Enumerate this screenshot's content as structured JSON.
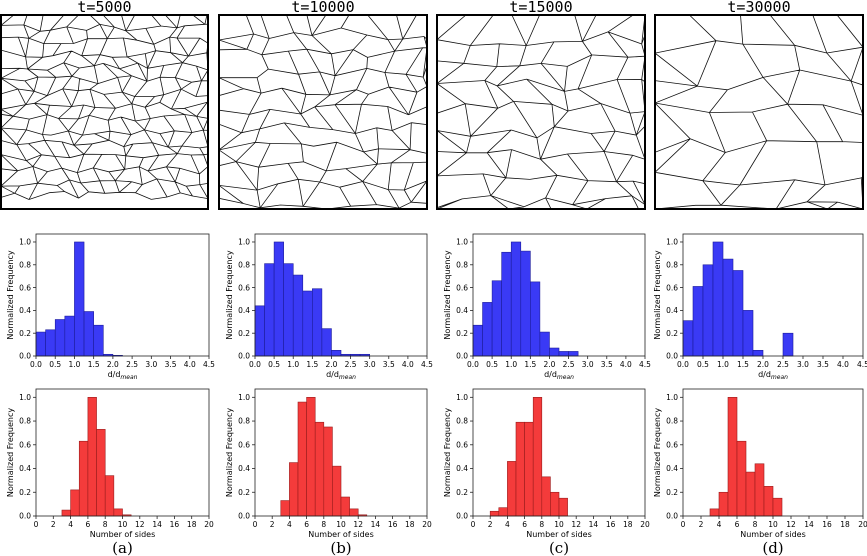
{
  "chart_data": {
    "columns": [
      {
        "time_label": "t=5000",
        "panel_label": "(a)",
        "microstructure": {
          "alt": "grain microstructure at t=5000"
        },
        "size_histogram": {
          "type": "bar",
          "series_color": "#3a3af5",
          "xlabel": "d/d",
          "xlabel_sub": "mean",
          "ylabel": "Normalized Frequency",
          "xlim": [
            0,
            4.5
          ],
          "ylim": [
            0,
            1.07
          ],
          "xticks": [
            "0.0",
            "0.5",
            "1.0",
            "1.5",
            "2.0",
            "2.5",
            "3.0",
            "3.5",
            "4.0",
            "4.5"
          ],
          "yticks": [
            "0.0",
            "0.2",
            "0.4",
            "0.6",
            "0.8",
            "1.0"
          ],
          "bin_width": 0.25,
          "bins": [
            {
              "x0": 0.0,
              "v": 0.21
            },
            {
              "x0": 0.25,
              "v": 0.23
            },
            {
              "x0": 0.5,
              "v": 0.32
            },
            {
              "x0": 0.75,
              "v": 0.35
            },
            {
              "x0": 1.0,
              "v": 1.0
            },
            {
              "x0": 1.25,
              "v": 0.39
            },
            {
              "x0": 1.5,
              "v": 0.27
            },
            {
              "x0": 1.75,
              "v": 0.015
            },
            {
              "x0": 2.0,
              "v": 0.006
            }
          ]
        },
        "sides_histogram": {
          "type": "bar",
          "series_color": "#f43b3b",
          "xlabel": "Number of sides",
          "ylabel": "Normalized Frequency",
          "xlim": [
            0,
            20
          ],
          "ylim": [
            0,
            1.07
          ],
          "xticks": [
            "0",
            "2",
            "4",
            "6",
            "8",
            "10",
            "12",
            "14",
            "16",
            "18",
            "20"
          ],
          "yticks": [
            "0.0",
            "0.2",
            "0.4",
            "0.6",
            "0.8",
            "1.0"
          ],
          "bin_width": 1,
          "bins": [
            {
              "x0": 3,
              "v": 0.05
            },
            {
              "x0": 4,
              "v": 0.22
            },
            {
              "x0": 5,
              "v": 0.63
            },
            {
              "x0": 6,
              "v": 1.0
            },
            {
              "x0": 7,
              "v": 0.73
            },
            {
              "x0": 8,
              "v": 0.34
            },
            {
              "x0": 9,
              "v": 0.06
            },
            {
              "x0": 10,
              "v": 0.01
            }
          ]
        }
      },
      {
        "time_label": "t=10000",
        "panel_label": "(b)",
        "microstructure": {
          "alt": "grain microstructure at t=10000"
        },
        "size_histogram": {
          "type": "bar",
          "series_color": "#3a3af5",
          "xlabel": "d/d",
          "xlabel_sub": "mean",
          "ylabel": "Normalized Frequency",
          "xlim": [
            0,
            4.5
          ],
          "ylim": [
            0,
            1.07
          ],
          "xticks": [
            "0.0",
            "0.5",
            "1.0",
            "1.5",
            "2.0",
            "2.5",
            "3.0",
            "3.5",
            "4.0",
            "4.5"
          ],
          "yticks": [
            "0.0",
            "0.2",
            "0.4",
            "0.6",
            "0.8",
            "1.0"
          ],
          "bin_width": 0.25,
          "bins": [
            {
              "x0": 0.0,
              "v": 0.44
            },
            {
              "x0": 0.25,
              "v": 0.81
            },
            {
              "x0": 0.5,
              "v": 1.0
            },
            {
              "x0": 0.75,
              "v": 0.81
            },
            {
              "x0": 1.0,
              "v": 0.71
            },
            {
              "x0": 1.25,
              "v": 0.57
            },
            {
              "x0": 1.5,
              "v": 0.59
            },
            {
              "x0": 1.75,
              "v": 0.24
            },
            {
              "x0": 2.0,
              "v": 0.05
            },
            {
              "x0": 2.25,
              "v": 0.015
            },
            {
              "x0": 2.5,
              "v": 0.015
            },
            {
              "x0": 2.75,
              "v": 0.015
            }
          ]
        },
        "sides_histogram": {
          "type": "bar",
          "series_color": "#f43b3b",
          "xlabel": "Number of sides",
          "ylabel": "Normalized Frequency",
          "xlim": [
            0,
            20
          ],
          "ylim": [
            0,
            1.07
          ],
          "xticks": [
            "0",
            "2",
            "4",
            "6",
            "8",
            "10",
            "12",
            "14",
            "16",
            "18",
            "20"
          ],
          "yticks": [
            "0.0",
            "0.2",
            "0.4",
            "0.6",
            "0.8",
            "1.0"
          ],
          "bin_width": 1,
          "bins": [
            {
              "x0": 3,
              "v": 0.13
            },
            {
              "x0": 4,
              "v": 0.45
            },
            {
              "x0": 5,
              "v": 0.96
            },
            {
              "x0": 6,
              "v": 1.0
            },
            {
              "x0": 7,
              "v": 0.79
            },
            {
              "x0": 8,
              "v": 0.75
            },
            {
              "x0": 9,
              "v": 0.42
            },
            {
              "x0": 10,
              "v": 0.16
            },
            {
              "x0": 11,
              "v": 0.06
            },
            {
              "x0": 12,
              "v": 0.01
            }
          ]
        }
      },
      {
        "time_label": "t=15000",
        "panel_label": "(c)",
        "microstructure": {
          "alt": "grain microstructure at t=15000"
        },
        "size_histogram": {
          "type": "bar",
          "series_color": "#3a3af5",
          "xlabel": "d/d",
          "xlabel_sub": "mean",
          "ylabel": "Normalized Frequency",
          "xlim": [
            0,
            4.5
          ],
          "ylim": [
            0,
            1.07
          ],
          "xticks": [
            "0.0",
            "0.5",
            "1.0",
            "1.5",
            "2.0",
            "2.5",
            "3.0",
            "3.5",
            "4.0",
            "4.5"
          ],
          "yticks": [
            "0.0",
            "0.2",
            "0.4",
            "0.6",
            "0.8",
            "1.0"
          ],
          "bin_width": 0.25,
          "bins": [
            {
              "x0": 0.0,
              "v": 0.27
            },
            {
              "x0": 0.25,
              "v": 0.47
            },
            {
              "x0": 0.5,
              "v": 0.66
            },
            {
              "x0": 0.75,
              "v": 0.91
            },
            {
              "x0": 1.0,
              "v": 1.0
            },
            {
              "x0": 1.25,
              "v": 0.92
            },
            {
              "x0": 1.5,
              "v": 0.65
            },
            {
              "x0": 1.75,
              "v": 0.21
            },
            {
              "x0": 2.0,
              "v": 0.07
            },
            {
              "x0": 2.25,
              "v": 0.04
            },
            {
              "x0": 2.5,
              "v": 0.04
            }
          ]
        },
        "sides_histogram": {
          "type": "bar",
          "series_color": "#f43b3b",
          "xlabel": "Number of sides",
          "ylabel": "Normalized Frequency",
          "xlim": [
            0,
            20
          ],
          "ylim": [
            0,
            1.07
          ],
          "xticks": [
            "0",
            "2",
            "4",
            "6",
            "8",
            "10",
            "12",
            "14",
            "16",
            "18",
            "20"
          ],
          "yticks": [
            "0.0",
            "0.2",
            "0.4",
            "0.6",
            "0.8",
            "1.0"
          ],
          "bin_width": 1,
          "bins": [
            {
              "x0": 2,
              "v": 0.04
            },
            {
              "x0": 3,
              "v": 0.07
            },
            {
              "x0": 4,
              "v": 0.46
            },
            {
              "x0": 5,
              "v": 0.79
            },
            {
              "x0": 6,
              "v": 0.79
            },
            {
              "x0": 7,
              "v": 1.0
            },
            {
              "x0": 8,
              "v": 0.33
            },
            {
              "x0": 9,
              "v": 0.2
            },
            {
              "x0": 10,
              "v": 0.15
            }
          ]
        }
      },
      {
        "time_label": "t=30000",
        "panel_label": "(d)",
        "microstructure": {
          "alt": "grain microstructure at t=30000"
        },
        "size_histogram": {
          "type": "bar",
          "series_color": "#3a3af5",
          "xlabel": "d/d",
          "xlabel_sub": "mean",
          "ylabel": "Normalized Frequency",
          "xlim": [
            0,
            4.5
          ],
          "ylim": [
            0,
            1.07
          ],
          "xticks": [
            "0.0",
            "0.5",
            "1.0",
            "1.5",
            "2.0",
            "2.5",
            "3.0",
            "3.5",
            "4.0",
            "4.5"
          ],
          "yticks": [
            "0.0",
            "0.2",
            "0.4",
            "0.6",
            "0.8",
            "1.0"
          ],
          "bin_width": 0.25,
          "bins": [
            {
              "x0": 0.0,
              "v": 0.31
            },
            {
              "x0": 0.25,
              "v": 0.61
            },
            {
              "x0": 0.5,
              "v": 0.8
            },
            {
              "x0": 0.75,
              "v": 1.0
            },
            {
              "x0": 1.0,
              "v": 0.85
            },
            {
              "x0": 1.25,
              "v": 0.75
            },
            {
              "x0": 1.5,
              "v": 0.4
            },
            {
              "x0": 1.75,
              "v": 0.05
            },
            {
              "x0": 2.5,
              "v": 0.2
            }
          ]
        },
        "sides_histogram": {
          "type": "bar",
          "series_color": "#f43b3b",
          "xlabel": "Number of sides",
          "ylabel": "Normalized Frequency",
          "xlim": [
            0,
            20
          ],
          "ylim": [
            0,
            1.07
          ],
          "xticks": [
            "0",
            "2",
            "4",
            "6",
            "8",
            "10",
            "12",
            "14",
            "16",
            "18",
            "20"
          ],
          "yticks": [
            "0.0",
            "0.2",
            "0.4",
            "0.6",
            "0.8",
            "1.0"
          ],
          "bin_width": 1,
          "bins": [
            {
              "x0": 3,
              "v": 0.06
            },
            {
              "x0": 4,
              "v": 0.2
            },
            {
              "x0": 5,
              "v": 1.0
            },
            {
              "x0": 6,
              "v": 0.63
            },
            {
              "x0": 7,
              "v": 0.37
            },
            {
              "x0": 8,
              "v": 0.44
            },
            {
              "x0": 9,
              "v": 0.25
            },
            {
              "x0": 10,
              "v": 0.15
            }
          ]
        }
      }
    ]
  }
}
